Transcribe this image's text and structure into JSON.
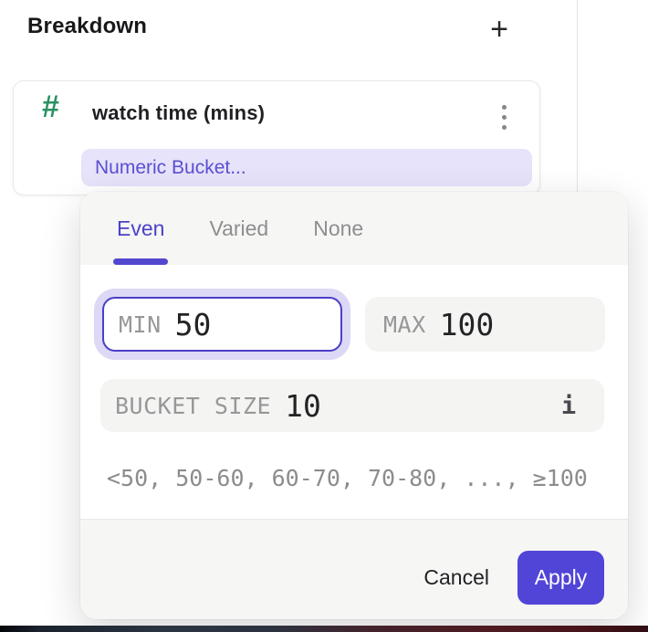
{
  "colors": {
    "accent": "#5145d8",
    "accent_text": "#4b41c9",
    "chip_bg": "#e6e3fa",
    "chip_text": "#5a4fd2",
    "hash_green": "#2b9163",
    "focus_ring": "#dcd8f5",
    "field_bg": "#f4f4f2",
    "header_bg": "#f6f6f4"
  },
  "icons": {
    "plus": "+",
    "hash": "#",
    "info": "i"
  },
  "header": {
    "title": "Breakdown"
  },
  "card": {
    "property": "watch time (mins)",
    "bucket_label": "Numeric Bucket..."
  },
  "popover": {
    "tabs": [
      {
        "label": "Even",
        "active": true
      },
      {
        "label": "Varied",
        "active": false
      },
      {
        "label": "None",
        "active": false
      }
    ],
    "fields": {
      "min": {
        "label": "MIN",
        "value": "50"
      },
      "max": {
        "label": "MAX",
        "value": "100"
      },
      "bucket_size": {
        "label": "BUCKET SIZE",
        "value": "10"
      }
    },
    "preview": "<50, 50-60, 60-70, 70-80, ..., ≥100",
    "actions": {
      "cancel": "Cancel",
      "apply": "Apply"
    }
  }
}
